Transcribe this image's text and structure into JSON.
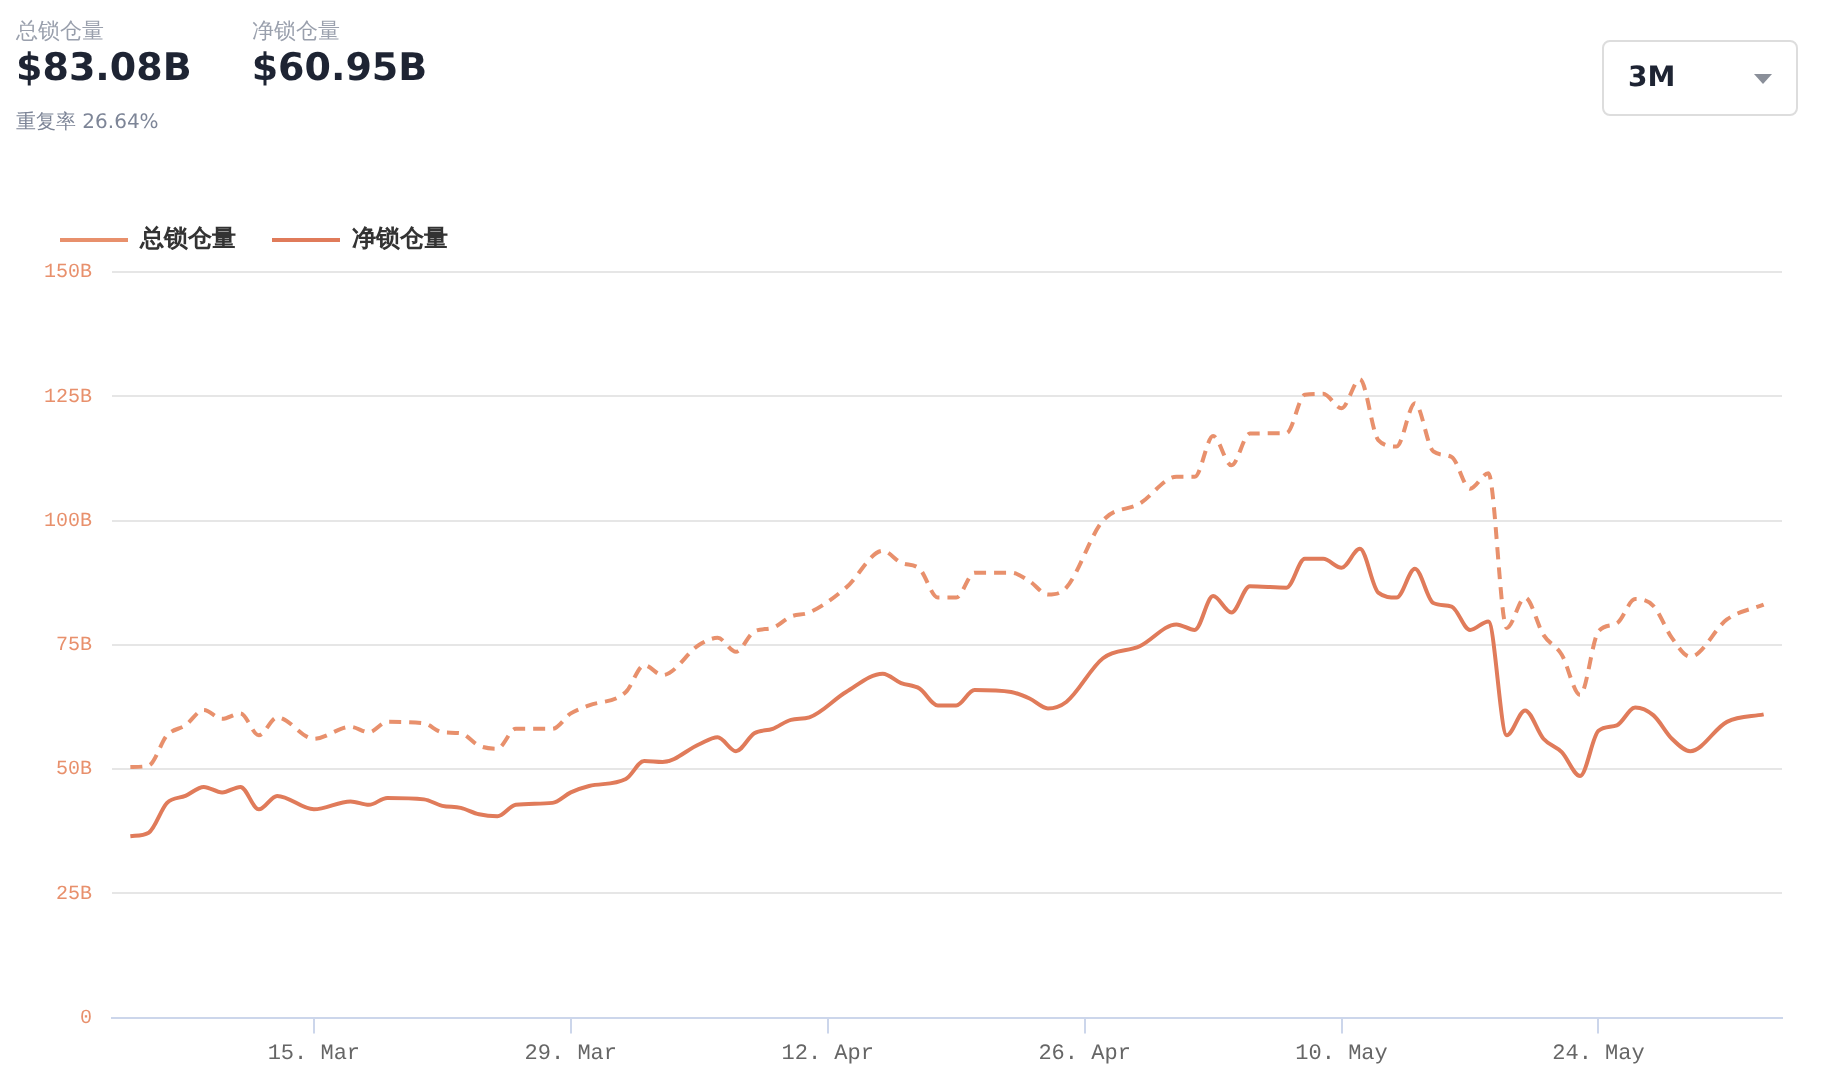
{
  "chart_data": {
    "type": "line",
    "annotations": [
      "总锁仓量",
      "$83.08B",
      "净锁仓量",
      "$60.95B",
      "重复率 26.64%",
      "3M"
    ],
    "x": [
      "--03-05",
      "--03-06",
      "--03-07",
      "--03-08",
      "--03-09",
      "--03-10",
      "--03-11",
      "--03-12",
      "--03-13",
      "--03-15",
      "--03-17",
      "--03-18",
      "--03-19",
      "--03-21",
      "--03-22",
      "--03-23",
      "--03-24",
      "--03-25",
      "--03-26",
      "--03-28",
      "--03-29",
      "--03-30",
      "--04-01",
      "--04-02",
      "--04-03",
      "--04-05",
      "--04-06",
      "--04-07",
      "--04-08",
      "--04-09",
      "--04-10",
      "--04-11",
      "--04-13",
      "--04-15",
      "--04-16",
      "--04-17",
      "--04-18",
      "--04-19",
      "--04-20",
      "--04-22",
      "--04-23",
      "--04-24",
      "--04-25",
      "--04-27",
      "--04-29",
      "--05-01",
      "--05-02",
      "--05-03",
      "--05-04",
      "--05-05",
      "--05-07",
      "--05-08",
      "--05-09",
      "--05-10",
      "--05-11",
      "--05-12",
      "--05-13",
      "--05-14",
      "--05-15",
      "--05-16",
      "--05-17",
      "--05-18",
      "--05-19",
      "--05-20",
      "--05-21",
      "--05-22",
      "--05-23",
      "--05-24",
      "--05-25",
      "--05-26",
      "--05-27",
      "--05-28",
      "--05-29",
      "--05-31",
      "--06-02"
    ],
    "series": [
      {
        "name": "总锁仓量",
        "color": "#e8906c",
        "line_style": "dashed",
        "values": [
          50.4,
          50.7,
          56.8,
          58.8,
          61.9,
          60.1,
          61.2,
          56.8,
          60.4,
          56.1,
          58.5,
          57.4,
          59.5,
          59.2,
          57.4,
          57.2,
          54.7,
          54.1,
          58.1,
          58.1,
          61.2,
          62.8,
          65.5,
          70.9,
          68.9,
          75,
          76.4,
          73.6,
          77.7,
          78.4,
          80.7,
          81.5,
          86.5,
          93.9,
          91.5,
          90.3,
          84.5,
          84.5,
          89.5,
          89.5,
          87.8,
          85.1,
          86.5,
          100,
          103.4,
          108.8,
          108.8,
          117,
          111.1,
          117.5,
          117.6,
          125.3,
          125.5,
          122.6,
          128.4,
          116.2,
          114.9,
          123.6,
          113.9,
          112.8,
          106.4,
          109.5,
          78.4,
          84.5,
          77,
          73,
          64.9,
          77.7,
          79.3,
          84.2,
          82.8,
          76.4,
          72.6,
          80.1,
          83.1
        ]
      },
      {
        "name": "净锁仓量",
        "color": "#e07b5a",
        "line_style": "solid",
        "values": [
          36.5,
          37.2,
          43.2,
          44.6,
          46.4,
          45.3,
          46.4,
          41.9,
          44.6,
          41.9,
          43.5,
          42.8,
          44.2,
          43.9,
          42.6,
          42.2,
          40.9,
          40.5,
          42.8,
          43.2,
          45.3,
          46.6,
          48,
          51.6,
          51.4,
          55,
          56.4,
          53.6,
          57.2,
          58.1,
          59.9,
          60.4,
          65.5,
          69.2,
          67.3,
          66.2,
          62.8,
          62.8,
          65.9,
          65.5,
          64.2,
          62.2,
          63.5,
          72.3,
          74.7,
          79.1,
          78,
          84.8,
          81.5,
          86.8,
          86.5,
          92.3,
          92.3,
          90.5,
          94.3,
          85.5,
          84.5,
          90.3,
          83.4,
          82.7,
          78,
          79.7,
          56.8,
          61.8,
          56.1,
          53.4,
          48.6,
          57.7,
          58.8,
          62.4,
          60.8,
          56.1,
          53.6,
          59.5,
          61
        ]
      }
    ],
    "xlim": [
      "--03-04",
      "--06-03"
    ],
    "xticks": [
      {
        "value": "--03-15",
        "label": "15. Mar"
      },
      {
        "value": "--03-29",
        "label": "29. Mar"
      },
      {
        "value": "--04-12",
        "label": "12. Apr"
      },
      {
        "value": "--04-26",
        "label": "26. Apr"
      },
      {
        "value": "--05-10",
        "label": "10. May"
      },
      {
        "value": "--05-24",
        "label": "24. May"
      }
    ],
    "ylim": [
      0,
      150
    ],
    "yticks": [
      0,
      {
        "value": 25,
        "label": "25B"
      },
      {
        "value": 50,
        "label": "50B"
      },
      {
        "value": 75,
        "label": "75B"
      },
      {
        "value": 100,
        "label": "100B"
      },
      {
        "value": 125,
        "label": "125B"
      },
      {
        "value": 150,
        "label": "150B"
      }
    ],
    "grid": "y",
    "legend": "top left",
    "marker": "none"
  }
}
